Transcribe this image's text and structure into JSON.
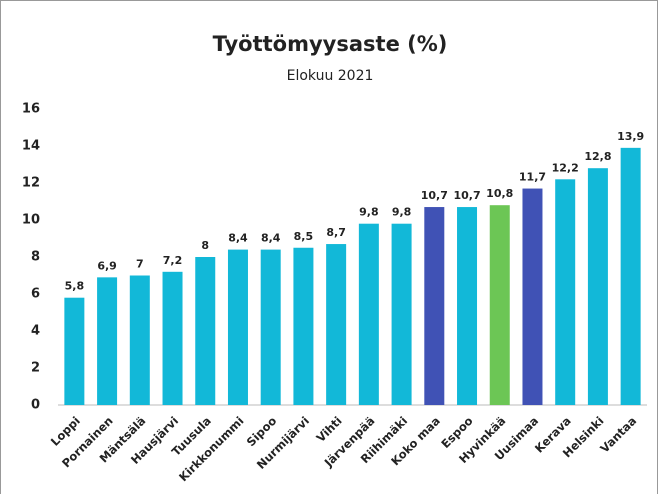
{
  "chart_data": {
    "type": "bar",
    "title": "Työttömyysaste (%)",
    "subtitle": "Elokuu 2021",
    "categories": [
      "Loppi",
      "Pornainen",
      "Mäntsälä",
      "Hausjärvi",
      "Tuusula",
      "Kirkkonummi",
      "Sipoo",
      "Nurmijärvi",
      "Vihti",
      "Järvenpää",
      "Riihimäki",
      "Koko maa",
      "Espoo",
      "Hyvinkää",
      "Uusimaa",
      "Kerava",
      "Helsinki",
      "Vantaa"
    ],
    "values": [
      5.8,
      6.9,
      7,
      7.2,
      8,
      8.4,
      8.4,
      8.5,
      8.7,
      9.8,
      9.8,
      10.7,
      10.7,
      10.8,
      11.7,
      12.2,
      12.8,
      13.9
    ],
    "value_labels": [
      "5,8",
      "6,9",
      "7",
      "7,2",
      "8",
      "8,4",
      "8,4",
      "8,5",
      "8,7",
      "9,8",
      "9,8",
      "10,7",
      "10,7",
      "10,8",
      "11,7",
      "12,2",
      "12,8",
      "13,9"
    ],
    "colors": [
      "#12b8d8",
      "#12b8d8",
      "#12b8d8",
      "#12b8d8",
      "#12b8d8",
      "#12b8d8",
      "#12b8d8",
      "#12b8d8",
      "#12b8d8",
      "#12b8d8",
      "#12b8d8",
      "#4052b5",
      "#12b8d8",
      "#6cc655",
      "#4052b5",
      "#12b8d8",
      "#12b8d8",
      "#12b8d8"
    ],
    "ylim": [
      0,
      16
    ],
    "yticks": [
      0,
      2,
      4,
      6,
      8,
      10,
      12,
      14,
      16
    ],
    "grid": false
  }
}
